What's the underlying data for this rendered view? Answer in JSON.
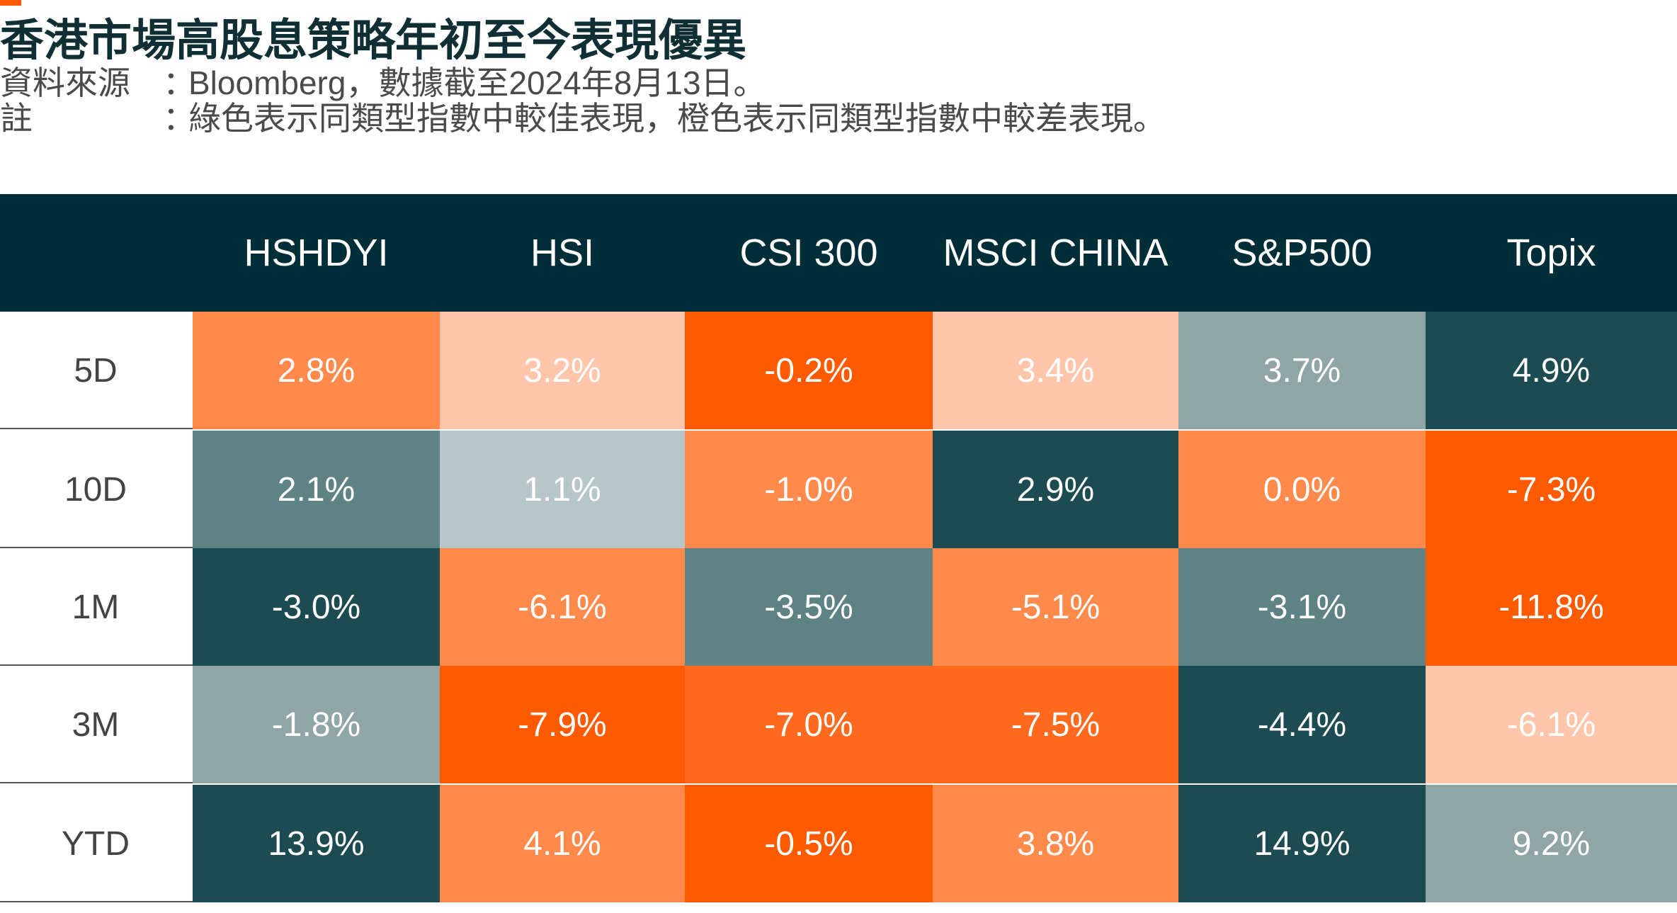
{
  "title": "香港市場高股息策略年初至今表現優異",
  "source": {
    "label": "資料來源",
    "sep": "：",
    "text": "Bloomberg，數據截至2024年8月13日。"
  },
  "note": {
    "label": "註",
    "sep": "：",
    "text": "綠色表示同類型指數中較佳表現，橙色表示同類型指數中較差表現。"
  },
  "colors": {
    "header_bg": "#002e38",
    "accent": "#ff5a00",
    "dark_teal": "#1c4b51",
    "mid_teal": "#5f8384",
    "light_teal": "#8fa5a6",
    "pale_teal": "#b7c7c9",
    "orange_strong": "#ff5a00",
    "orange_mid": "#ff6a1e",
    "orange": "#ff8a4b",
    "orange_pale": "#ffc6ab"
  },
  "chart_data": {
    "type": "table",
    "columns": [
      "HSHDYI",
      "HSI",
      "CSI 300",
      "MSCI CHINA",
      "S&P500",
      "Topix"
    ],
    "rows": [
      "5D",
      "10D",
      "1M",
      "3M",
      "YTD"
    ],
    "unit": "%",
    "values": [
      [
        2.8,
        3.2,
        -0.2,
        3.4,
        3.7,
        4.9
      ],
      [
        2.1,
        1.1,
        -1.0,
        2.9,
        0.0,
        -7.3
      ],
      [
        -3.0,
        -6.1,
        -3.5,
        -5.1,
        -3.1,
        -11.8
      ],
      [
        -1.8,
        -7.9,
        -7.0,
        -7.5,
        -4.4,
        -6.1
      ],
      [
        13.9,
        4.1,
        -0.5,
        3.8,
        14.9,
        9.2
      ]
    ],
    "labels": [
      [
        "2.8%",
        "3.2%",
        "-0.2%",
        "3.4%",
        "3.7%",
        "4.9%"
      ],
      [
        "2.1%",
        "1.1%",
        "-1.0%",
        "2.9%",
        "0.0%",
        "-7.3%"
      ],
      [
        "-3.0%",
        "-6.1%",
        "-3.5%",
        "-5.1%",
        "-3.1%",
        "-11.8%"
      ],
      [
        "-1.8%",
        "-7.9%",
        "-7.0%",
        "-7.5%",
        "-4.4%",
        "-6.1%"
      ],
      [
        "13.9%",
        "4.1%",
        "-0.5%",
        "3.8%",
        "14.9%",
        "9.2%"
      ]
    ],
    "cell_colors": [
      [
        "orange",
        "orange_pale",
        "orange_strong",
        "orange_pale",
        "light_teal",
        "dark_teal"
      ],
      [
        "mid_teal",
        "pale_teal",
        "orange",
        "dark_teal",
        "orange",
        "orange_strong"
      ],
      [
        "dark_teal",
        "orange",
        "mid_teal",
        "orange",
        "mid_teal",
        "orange_strong"
      ],
      [
        "light_teal",
        "orange_strong",
        "orange_mid",
        "orange_mid",
        "dark_teal",
        "orange_pale"
      ],
      [
        "dark_teal",
        "orange",
        "orange_strong",
        "orange",
        "dark_teal",
        "light_teal"
      ]
    ]
  }
}
